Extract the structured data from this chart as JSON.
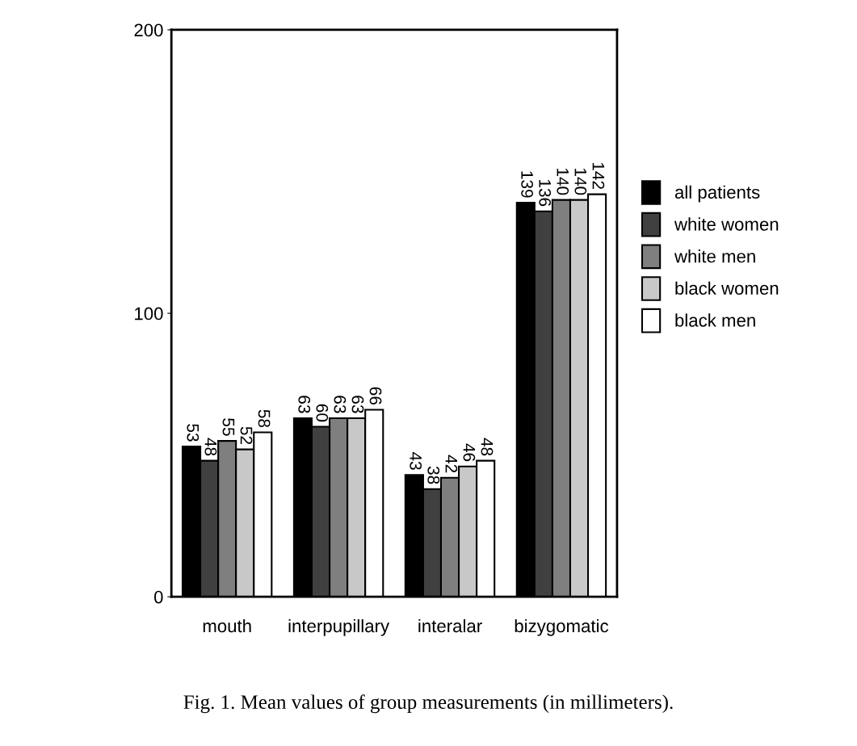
{
  "chart_data": {
    "type": "bar",
    "categories": [
      "mouth",
      "interpupillary",
      "interalar",
      "bizygomatic"
    ],
    "series": [
      {
        "name": "all patients",
        "color": "#000000",
        "values": [
          53,
          63,
          43,
          139
        ]
      },
      {
        "name": "white women",
        "color": "#404040",
        "values": [
          48,
          60,
          38,
          136
        ]
      },
      {
        "name": "white men",
        "color": "#7f7f7f",
        "values": [
          55,
          63,
          42,
          140
        ]
      },
      {
        "name": "black women",
        "color": "#c8c8c8",
        "values": [
          52,
          63,
          46,
          140
        ]
      },
      {
        "name": "black men",
        "color": "#ffffff",
        "values": [
          58,
          66,
          48,
          142
        ]
      }
    ],
    "ylim": [
      0,
      200
    ],
    "yticks": [
      0,
      100,
      200
    ],
    "grid": false,
    "legend": "right",
    "data_labels": true,
    "annotations": [
      "Fig. 1. Mean values of group measurements (in millimeters)."
    ]
  }
}
